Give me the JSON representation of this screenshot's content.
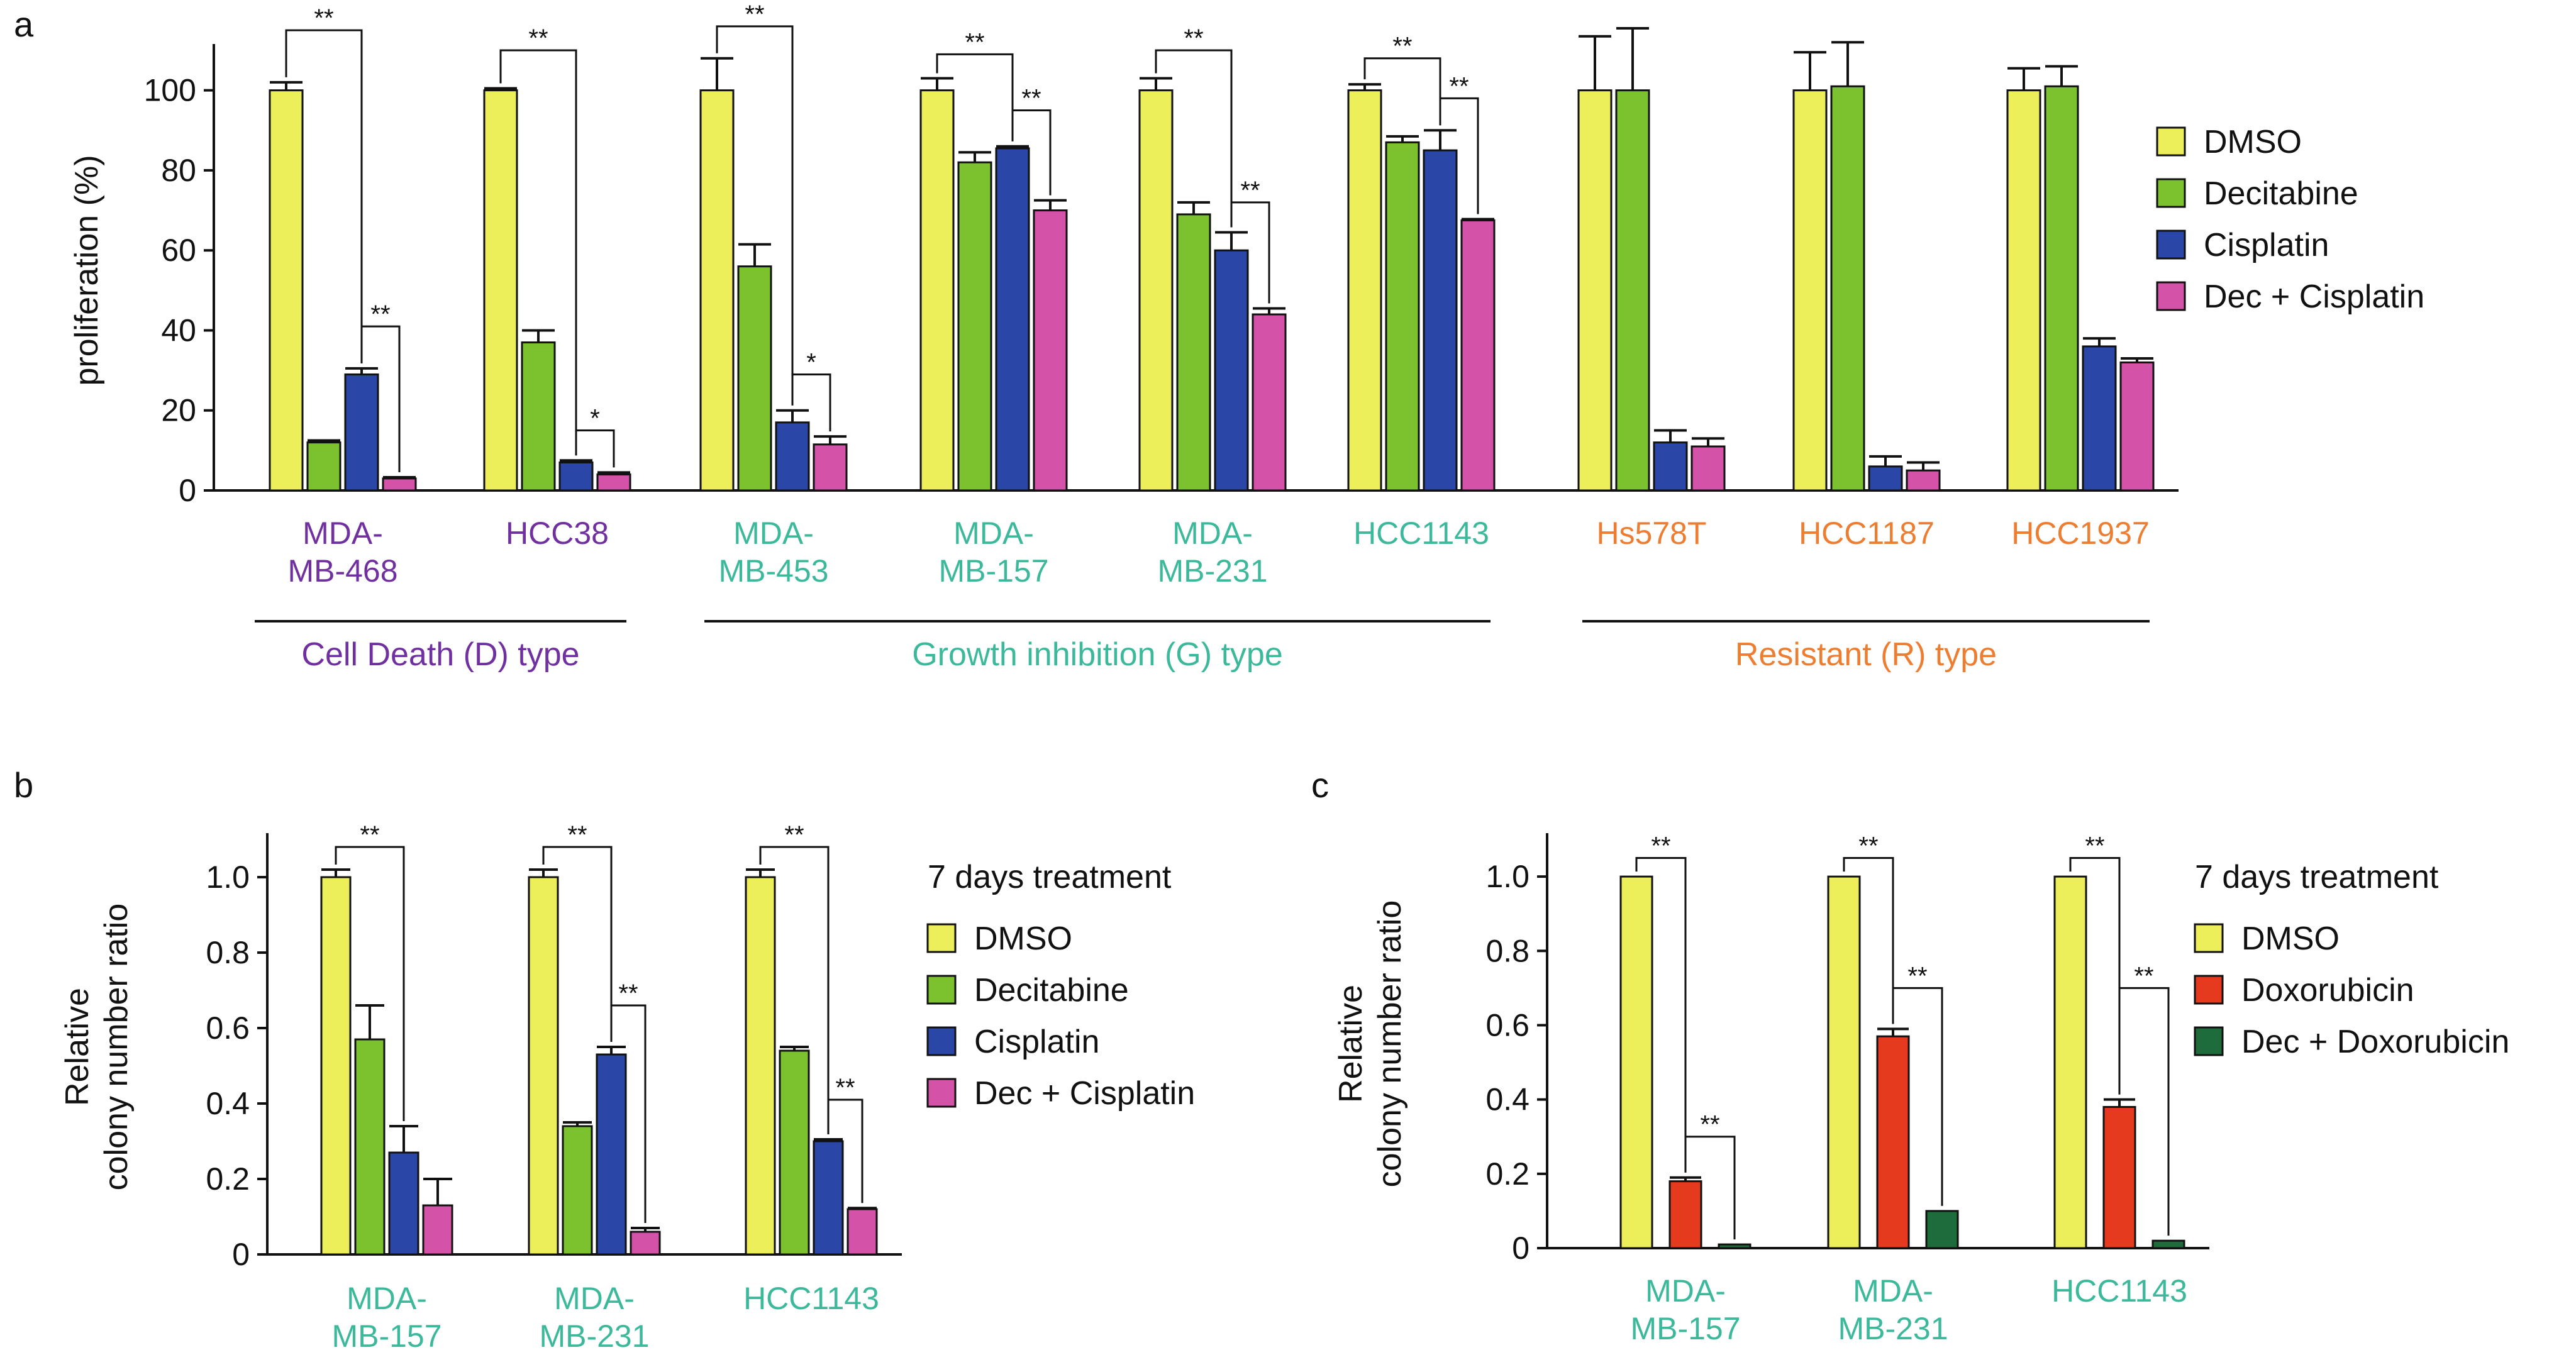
{
  "colors": {
    "dmso": "#ecee5a",
    "decitabine": "#7cc22e",
    "cisplatin": "#2a47a8",
    "dec_cisplatin": "#d452a8",
    "doxorubicin": "#e53a1e",
    "dec_doxorubicin": "#1e6b3b",
    "d_type": "#7030a0",
    "g_type": "#3cb89a",
    "r_type": "#ed7d31",
    "ink": "#111111"
  },
  "chart_data": [
    {
      "panel": "a",
      "type": "bar",
      "ylabel": "proliferation (%)",
      "ylim": [
        0,
        110
      ],
      "yticks": [
        "0",
        "20",
        "40",
        "60",
        "80",
        "100"
      ],
      "series": [
        {
          "name": "DMSO",
          "color": "dmso",
          "values": [
            100,
            100,
            100,
            100,
            100,
            100,
            100,
            100,
            100
          ],
          "errors": [
            2,
            0.5,
            8,
            3,
            3,
            1.5,
            13.5,
            9.5,
            5.5
          ]
        },
        {
          "name": "Decitabine",
          "color": "decitabine",
          "values": [
            12,
            37,
            56,
            82,
            69,
            87,
            100,
            101,
            101
          ],
          "errors": [
            0.5,
            3,
            5.5,
            2.5,
            3,
            1.5,
            15.5,
            11,
            5
          ]
        },
        {
          "name": "Cisplatin",
          "color": "cisplatin",
          "values": [
            29,
            7,
            17,
            85.5,
            60,
            85,
            12,
            6,
            36
          ],
          "errors": [
            1.5,
            0.5,
            3,
            0.5,
            4.5,
            5,
            3,
            2.5,
            2
          ]
        },
        {
          "name": "Dec + Cisplatin",
          "color": "dec_cisplatin",
          "values": [
            3,
            4,
            11.5,
            70,
            44,
            67.5,
            11,
            5,
            32
          ],
          "errors": [
            0.3,
            0.5,
            2,
            2.5,
            1.5,
            0.3,
            2,
            2,
            1
          ]
        }
      ],
      "categories": [
        {
          "lines": [
            "MDA-",
            "MB-468"
          ],
          "group": "d_type"
        },
        {
          "lines": [
            "HCC38"
          ],
          "group": "d_type"
        },
        {
          "lines": [
            "MDA-",
            "MB-453"
          ],
          "group": "g_type"
        },
        {
          "lines": [
            "MDA-",
            "MB-157"
          ],
          "group": "g_type"
        },
        {
          "lines": [
            "MDA-",
            "MB-231"
          ],
          "group": "g_type"
        },
        {
          "lines": [
            "HCC1143"
          ],
          "group": "g_type"
        },
        {
          "lines": [
            "Hs578T"
          ],
          "group": "r_type"
        },
        {
          "lines": [
            "HCC1187"
          ],
          "group": "r_type"
        },
        {
          "lines": [
            "HCC1937"
          ],
          "group": "r_type"
        }
      ],
      "groups": [
        {
          "label": "Cell Death (D) type",
          "color": "d_type",
          "from": 0,
          "to": 1
        },
        {
          "label": "Growth inhibition (G) type",
          "color": "g_type",
          "from": 2,
          "to": 5
        },
        {
          "label": "Resistant (R) type",
          "color": "r_type",
          "from": 6,
          "to": 8
        }
      ],
      "significance": [
        {
          "cat": 0,
          "s1": 0,
          "s2": 2,
          "label": "**",
          "level": 115
        },
        {
          "cat": 0,
          "s1": 2,
          "s2": 3,
          "label": "**",
          "level": 41
        },
        {
          "cat": 1,
          "s1": 0,
          "s2": 2,
          "label": "**",
          "level": 110
        },
        {
          "cat": 1,
          "s1": 2,
          "s2": 3,
          "label": "*",
          "level": 15
        },
        {
          "cat": 2,
          "s1": 0,
          "s2": 2,
          "label": "**",
          "level": 116
        },
        {
          "cat": 2,
          "s1": 2,
          "s2": 3,
          "label": "*",
          "level": 29
        },
        {
          "cat": 3,
          "s1": 0,
          "s2": 2,
          "label": "**",
          "level": 109
        },
        {
          "cat": 3,
          "s1": 2,
          "s2": 3,
          "label": "**",
          "level": 95
        },
        {
          "cat": 4,
          "s1": 0,
          "s2": 2,
          "label": "**",
          "level": 110
        },
        {
          "cat": 4,
          "s1": 2,
          "s2": 3,
          "label": "**",
          "level": 72
        },
        {
          "cat": 5,
          "s1": 0,
          "s2": 2,
          "label": "**",
          "level": 108
        },
        {
          "cat": 5,
          "s1": 2,
          "s2": 3,
          "label": "**",
          "level": 98
        }
      ]
    },
    {
      "panel": "b",
      "type": "bar",
      "ylabel": [
        "Relative",
        "colony number ratio"
      ],
      "ylim": [
        0,
        1.1
      ],
      "yticks": [
        "0",
        "0.2",
        "0.4",
        "0.6",
        "0.8",
        "1.0"
      ],
      "legend_title": "7 days treatment",
      "series": [
        {
          "name": "DMSO",
          "color": "dmso",
          "values": [
            1.0,
            1.0,
            1.0
          ],
          "errors": [
            0.02,
            0.02,
            0.02
          ]
        },
        {
          "name": "Decitabine",
          "color": "decitabine",
          "values": [
            0.57,
            0.34,
            0.54
          ],
          "errors": [
            0.09,
            0.01,
            0.01
          ]
        },
        {
          "name": "Cisplatin",
          "color": "cisplatin",
          "values": [
            0.27,
            0.53,
            0.3
          ],
          "errors": [
            0.07,
            0.02,
            0.005
          ]
        },
        {
          "name": "Dec + Cisplatin",
          "color": "dec_cisplatin",
          "values": [
            0.13,
            0.06,
            0.12
          ],
          "errors": [
            0.07,
            0.01,
            0.003
          ]
        }
      ],
      "categories": [
        {
          "lines": [
            "MDA-",
            "MB-157"
          ],
          "group": "g_type"
        },
        {
          "lines": [
            "MDA-",
            "MB-231"
          ],
          "group": "g_type"
        },
        {
          "lines": [
            "HCC1143"
          ],
          "group": "g_type"
        }
      ],
      "significance": [
        {
          "cat": 0,
          "s1": 0,
          "s2": 2,
          "label": "**",
          "level": 1.08
        },
        {
          "cat": 1,
          "s1": 0,
          "s2": 2,
          "label": "**",
          "level": 1.08
        },
        {
          "cat": 1,
          "s1": 2,
          "s2": 3,
          "label": "**",
          "level": 0.66
        },
        {
          "cat": 2,
          "s1": 0,
          "s2": 2,
          "label": "**",
          "level": 1.08
        },
        {
          "cat": 2,
          "s1": 2,
          "s2": 3,
          "label": "**",
          "level": 0.41
        }
      ]
    },
    {
      "panel": "c",
      "type": "bar",
      "ylabel": [
        "Relative",
        "colony number ratio"
      ],
      "ylim": [
        0,
        1.1
      ],
      "yticks": [
        "0",
        "0.2",
        "0.4",
        "0.6",
        "0.8",
        "1.0"
      ],
      "legend_title": "7 days treatment",
      "series": [
        {
          "name": "DMSO",
          "color": "dmso",
          "values": [
            1.0,
            1.0,
            1.0
          ],
          "errors": [
            0,
            0,
            0
          ]
        },
        {
          "name": "Doxorubicin",
          "color": "doxorubicin",
          "values": [
            0.18,
            0.57,
            0.38
          ],
          "errors": [
            0.01,
            0.02,
            0.02
          ]
        },
        {
          "name": "Dec + Doxorubicin",
          "color": "dec_doxorubicin",
          "values": [
            0.01,
            0.1,
            0.02
          ],
          "errors": [
            0,
            0,
            0
          ]
        }
      ],
      "categories": [
        {
          "lines": [
            "MDA-",
            "MB-157"
          ],
          "group": "g_type"
        },
        {
          "lines": [
            "MDA-",
            "MB-231"
          ],
          "group": "g_type"
        },
        {
          "lines": [
            "HCC1143"
          ],
          "group": "g_type"
        }
      ],
      "significance": [
        {
          "cat": 0,
          "s1": 0,
          "s2": 1,
          "label": "**",
          "level": 1.05
        },
        {
          "cat": 0,
          "s1": 1,
          "s2": 2,
          "label": "**",
          "level": 0.3
        },
        {
          "cat": 1,
          "s1": 0,
          "s2": 1,
          "label": "**",
          "level": 1.05
        },
        {
          "cat": 1,
          "s1": 1,
          "s2": 2,
          "label": "**",
          "level": 0.7
        },
        {
          "cat": 2,
          "s1": 0,
          "s2": 1,
          "label": "**",
          "level": 1.05
        },
        {
          "cat": 2,
          "s1": 1,
          "s2": 2,
          "label": "**",
          "level": 0.7
        }
      ]
    }
  ]
}
